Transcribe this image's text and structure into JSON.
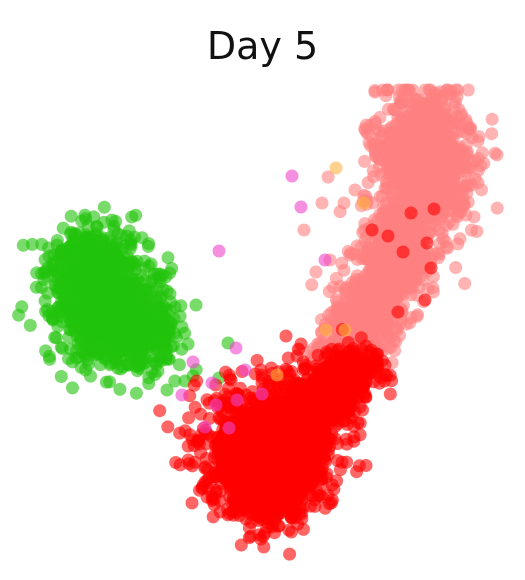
{
  "chart_data": {
    "type": "scatter",
    "title": "Day 5",
    "xlabel": "",
    "ylabel": "",
    "axes_visible": false,
    "grid": false,
    "legend": "none",
    "series": [
      {
        "color": "#ff8080",
        "clusters": [
          {
            "center": [
              425,
              160
            ],
            "spread": [
              24,
              36
            ],
            "count": 900
          },
          {
            "center": [
              398,
              258
            ],
            "spread": [
              18,
              22
            ],
            "count": 480
          },
          {
            "center": [
              365,
              318
            ],
            "spread": [
              18,
              18
            ],
            "count": 320
          },
          {
            "center": [
              340,
              352
            ],
            "spread": [
              14,
              12
            ],
            "count": 160
          }
        ],
        "points": [
          [
            367,
            133
          ],
          [
            382,
            135
          ],
          [
            468,
            128
          ],
          [
            472,
            161
          ],
          [
            466,
            215
          ],
          [
            436,
            220
          ],
          [
            355,
            190
          ],
          [
            344,
            203
          ],
          [
            322,
            203
          ],
          [
            316,
            272
          ],
          [
            304,
            230
          ],
          [
            330,
            260
          ],
          [
            419,
            110
          ],
          [
            437,
            110
          ]
        ]
      },
      {
        "color": "#22c30b",
        "clusters": [
          {
            "center": [
              102,
              300
            ],
            "spread": [
              26,
              32
            ],
            "count": 900
          },
          {
            "center": [
              142,
              330
            ],
            "spread": [
              18,
              18
            ],
            "count": 260
          },
          {
            "center": [
              90,
              258
            ],
            "spread": [
              18,
              12
            ],
            "count": 150
          }
        ],
        "points": [
          [
            124,
            246
          ],
          [
            160,
            274
          ],
          [
            167,
            291
          ],
          [
            196,
            305
          ],
          [
            175,
            307
          ],
          [
            182,
            327
          ],
          [
            188,
            344
          ],
          [
            164,
            321
          ],
          [
            228,
            343
          ],
          [
            219,
            378
          ],
          [
            185,
            381
          ],
          [
            193,
            376
          ],
          [
            53,
            320
          ],
          [
            167,
            390
          ]
        ]
      },
      {
        "color": "#ff0000",
        "clusters": [
          {
            "center": [
              268,
              455
            ],
            "spread": [
              30,
              30
            ],
            "count": 1500
          },
          {
            "center": [
              320,
              400
            ],
            "spread": [
              20,
              16
            ],
            "count": 380
          },
          {
            "center": [
              352,
              372
            ],
            "spread": [
              14,
              12
            ],
            "count": 180
          },
          {
            "center": [
              262,
              498
            ],
            "spread": [
              14,
              12
            ],
            "count": 180
          }
        ],
        "points": [
          [
            403,
            252
          ],
          [
            388,
            236
          ],
          [
            372,
            230
          ],
          [
            427,
            243
          ],
          [
            431,
            268
          ],
          [
            425,
            300
          ],
          [
            398,
            312
          ],
          [
            366,
            346
          ],
          [
            385,
            365
          ],
          [
            378,
            371
          ],
          [
            347,
            410
          ],
          [
            246,
            395
          ],
          [
            231,
            380
          ],
          [
            262,
            383
          ],
          [
            277,
            385
          ],
          [
            297,
            356
          ],
          [
            286,
            336
          ],
          [
            301,
            344
          ],
          [
            261,
            370
          ],
          [
            217,
            438
          ],
          [
            272,
            527
          ],
          [
            246,
            519
          ],
          [
            354,
            437
          ],
          [
            411,
            213
          ],
          [
            434,
            209
          ]
        ]
      },
      {
        "color": "#ee44cc",
        "clusters": [],
        "points": [
          [
            292,
            176
          ],
          [
            301,
            207
          ],
          [
            219,
            251
          ],
          [
            325,
            260
          ],
          [
            236,
            348
          ],
          [
            193,
            362
          ],
          [
            212,
            383
          ],
          [
            245,
            370
          ],
          [
            182,
            395
          ],
          [
            205,
            427
          ],
          [
            262,
            394
          ],
          [
            229,
            428
          ],
          [
            216,
            405
          ],
          [
            237,
            400
          ]
        ]
      },
      {
        "color": "#ffb340",
        "clusters": [],
        "points": [
          [
            336,
            168
          ],
          [
            326,
            330
          ],
          [
            277,
            375
          ],
          [
            345,
            330
          ],
          [
            364,
            203
          ]
        ]
      }
    ]
  }
}
